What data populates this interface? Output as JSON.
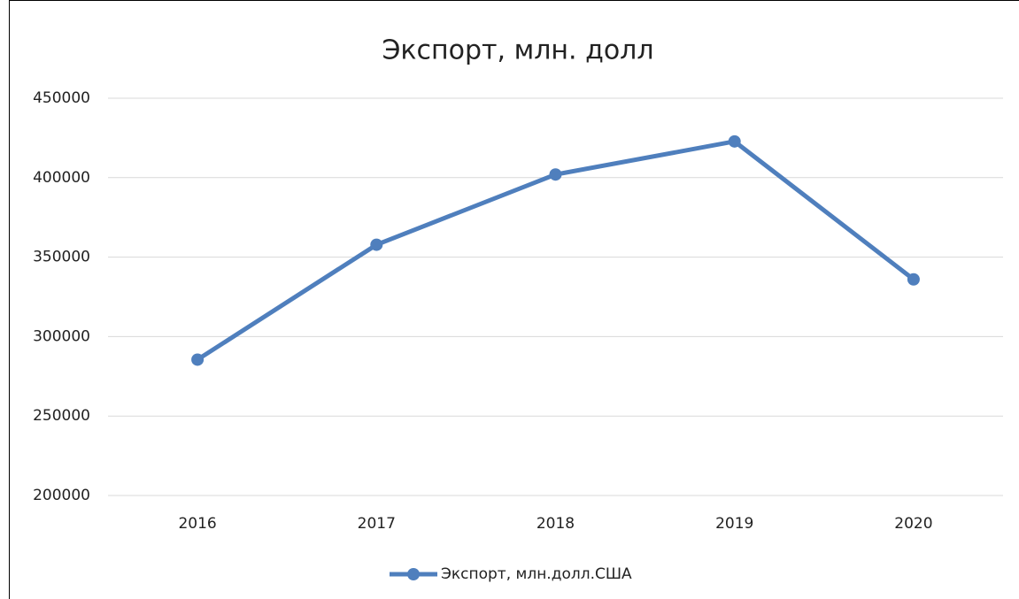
{
  "chart_data": {
    "type": "line",
    "title": "Экспорт, млн. долл",
    "categories": [
      "2016",
      "2017",
      "2018",
      "2019",
      "2020"
    ],
    "series": [
      {
        "name": "Экспорт, млн.долл.США",
        "color": "#4f7fbd",
        "values": [
          285500,
          357800,
          402000,
          422800,
          336000
        ]
      }
    ],
    "ylim": [
      200000,
      450000
    ],
    "yticks": [
      200000,
      250000,
      300000,
      350000,
      400000,
      450000
    ],
    "grid": true,
    "legend": "bottom"
  }
}
